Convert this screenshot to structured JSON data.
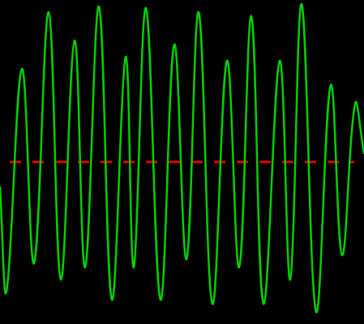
{
  "chart_data": {
    "type": "line",
    "xlim": [
      0,
      449
    ],
    "ylim": [
      0,
      400
    ],
    "tick_labels": false,
    "grid": false,
    "series": [
      {
        "color": "#00d000",
        "line_style": "solid",
        "x": [
          0,
          8,
          27,
          42,
          60,
          75,
          92,
          105,
          122,
          138,
          155,
          165,
          180,
          198,
          215,
          230,
          245,
          262,
          280,
          295,
          310,
          325,
          345,
          358,
          372,
          390,
          408,
          422,
          438,
          449
        ],
        "values": [
          170,
          40,
          315,
          75,
          385,
          55,
          350,
          70,
          392,
          30,
          330,
          70,
          390,
          30,
          345,
          80,
          385,
          25,
          325,
          70,
          380,
          25,
          325,
          55,
          395,
          15,
          295,
          85,
          272,
          210
        ]
      },
      {
        "color": "#e00000",
        "line_style": "dashed",
        "x": [
          12,
          437
        ],
        "values": [
          200,
          200
        ]
      }
    ]
  }
}
